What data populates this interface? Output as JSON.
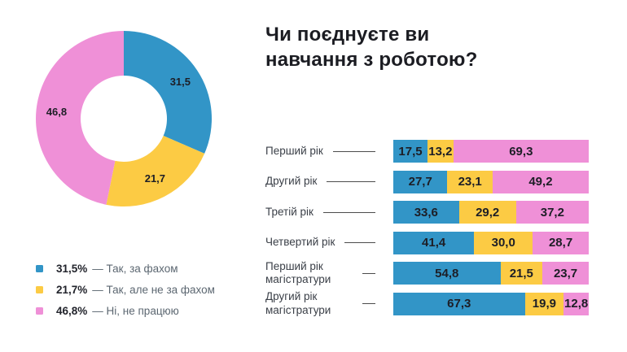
{
  "title": "Чи поєднуєте ви\nнавчання з роботою?",
  "legend_separator": "—",
  "colors": {
    "blue": "#3295c7",
    "yellow": "#fccb44",
    "pink": "#ef90d7",
    "text_dark": "#1d1e26",
    "text_gray": "#5c6771",
    "leader_line": "#4c4c4c"
  },
  "chart_data": [
    {
      "type": "pie",
      "donut": true,
      "start_angle_deg": -90,
      "direction": "clockwise",
      "labels": [
        "Так, за фахом",
        "Так, але не за фахом",
        "Ні, не працюю"
      ],
      "values": [
        31.5,
        21.7,
        46.8
      ],
      "value_labels": [
        "31,5",
        "21,7",
        "46,8"
      ],
      "colors": [
        "#3295c7",
        "#fccb44",
        "#ef90d7"
      ],
      "legend_position": "bottom-left",
      "legend_value_labels": [
        "31,5%",
        "21,7%",
        "46,8%"
      ]
    },
    {
      "type": "bar",
      "stacked": true,
      "orientation": "horizontal",
      "xlim": [
        0,
        100
      ],
      "grid": false,
      "categories": [
        "Перший рік",
        "Другий рік",
        "Третій рік",
        "Четвертий рік",
        "Перший рік магістратури",
        "Другий рік магістратури"
      ],
      "series": [
        {
          "name": "Так, за фахом",
          "color": "#3295c7",
          "values": [
            17.5,
            27.7,
            33.6,
            41.4,
            54.8,
            67.3
          ]
        },
        {
          "name": "Так, але не за фахом",
          "color": "#fccb44",
          "values": [
            13.2,
            23.1,
            29.2,
            30.0,
            21.5,
            19.9
          ]
        },
        {
          "name": "Ні, не працюю",
          "color": "#ef90d7",
          "values": [
            69.3,
            49.2,
            37.2,
            28.7,
            23.7,
            12.8
          ]
        }
      ]
    }
  ]
}
